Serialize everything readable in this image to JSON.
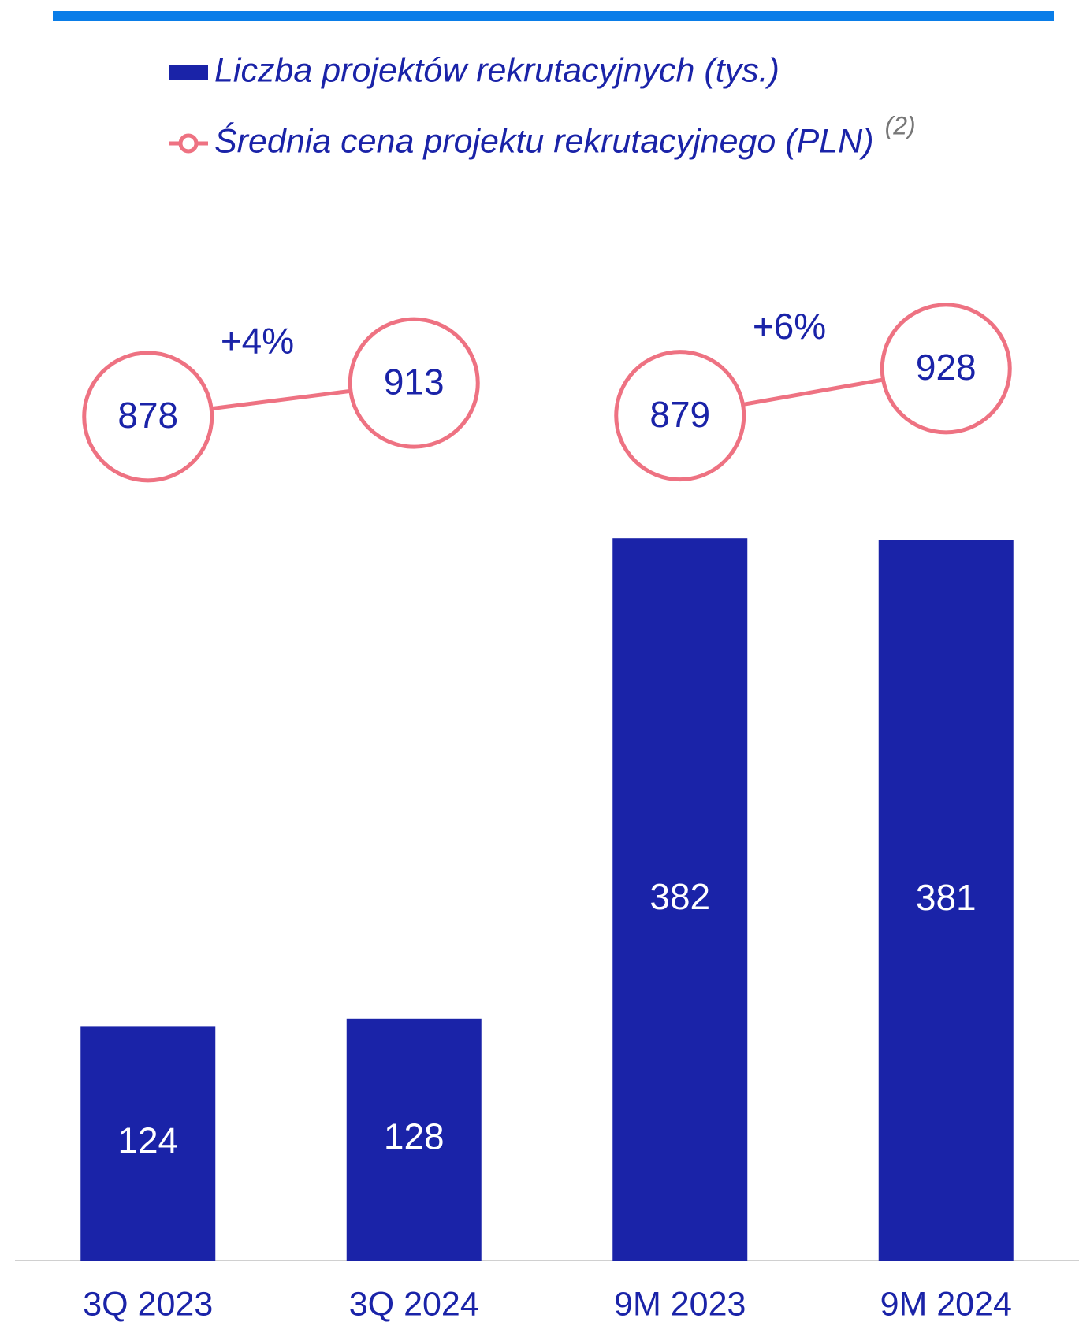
{
  "chart_data": {
    "type": "bar_line",
    "categories": [
      "3Q 2023",
      "3Q 2024",
      "9M 2023",
      "9M 2024"
    ],
    "series": [
      {
        "name": "Liczba projektów rekrutacyjnych (tys.)",
        "type": "bar",
        "color": "#1a23a8",
        "values": [
          124,
          128,
          382,
          381
        ]
      },
      {
        "name": "Średnia cena projektu rekrutacyjnego (PLN)",
        "type": "line",
        "axis": "y2",
        "color": "#ee7282",
        "values": [
          878,
          913,
          879,
          928
        ],
        "note": "(2)"
      }
    ],
    "annotations": [
      {
        "text": "+4%",
        "between": [
          0,
          1
        ]
      },
      {
        "text": "+6%",
        "between": [
          2,
          3
        ]
      }
    ],
    "ylim": [
      0,
      400
    ],
    "y2lim": [
      0,
      1000
    ],
    "legend": "top",
    "grid": false
  }
}
